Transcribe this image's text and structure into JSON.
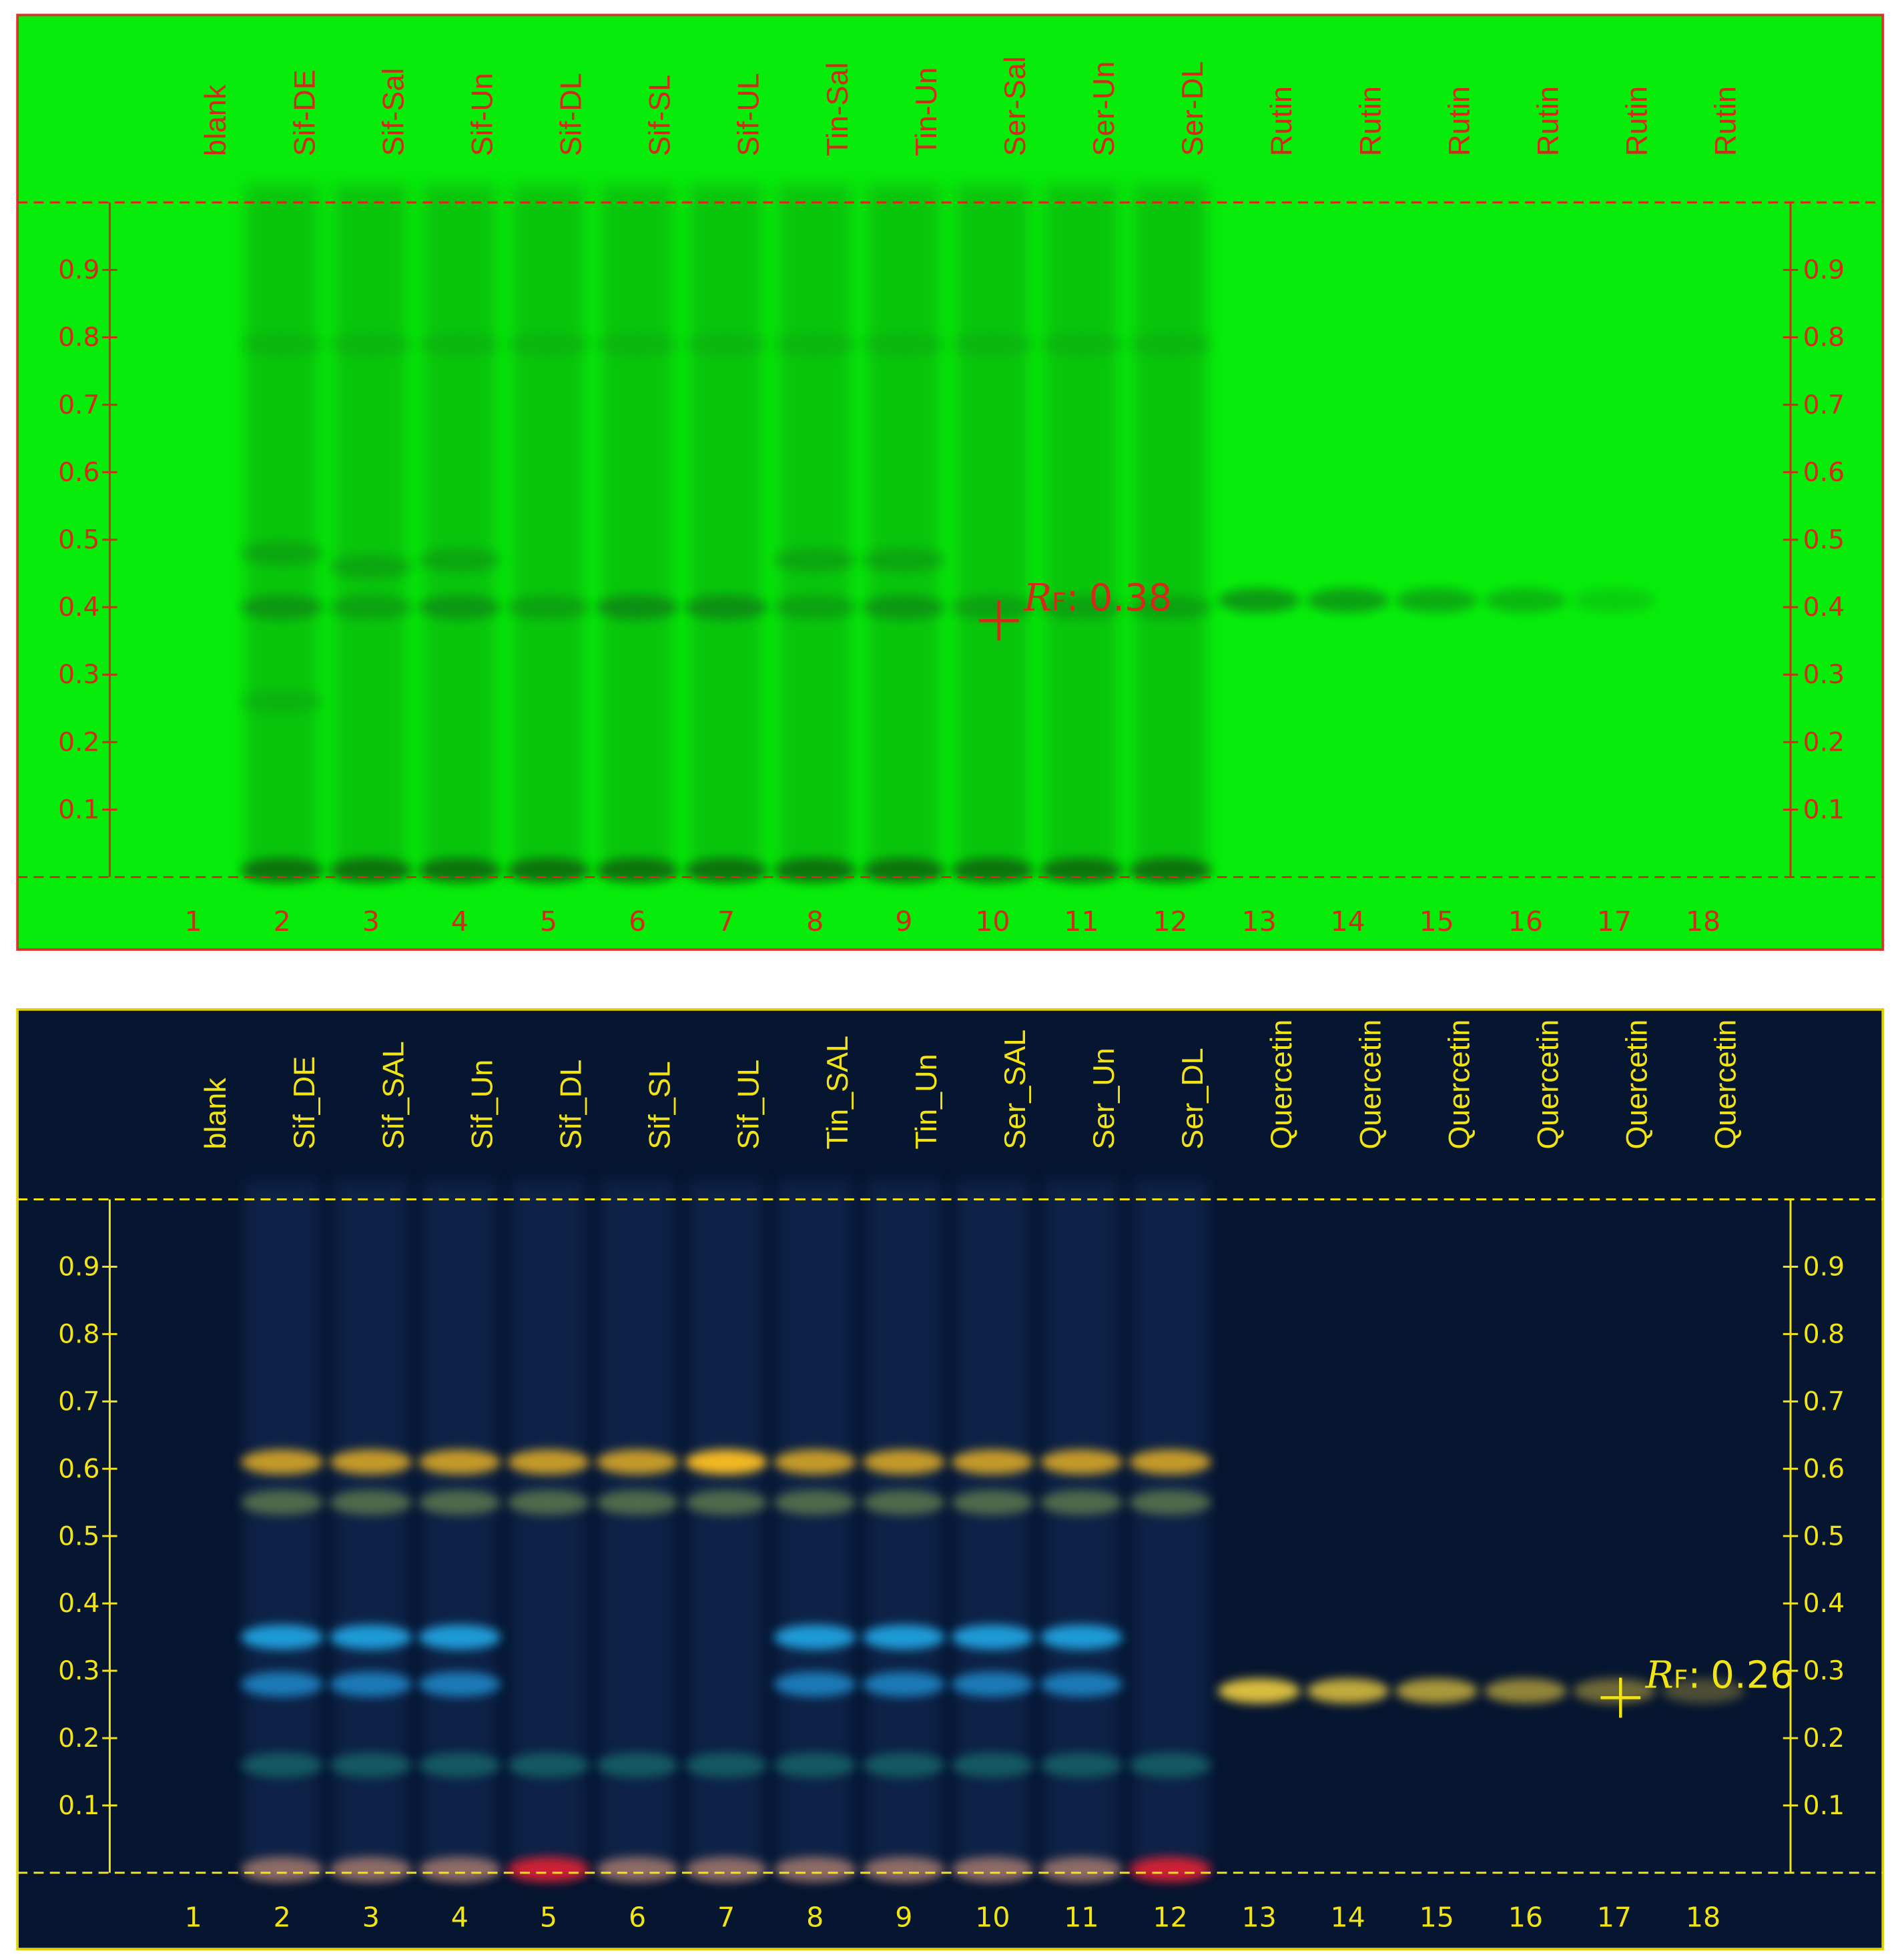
{
  "plates": [
    {
      "lane_labels": [
        "blank",
        "Sif-DE",
        "Sif-Sal",
        "Sif-Un",
        "Sif-DL",
        "Sif-SL",
        "Sif-UL",
        "Tin-Sal",
        "Tin-Un",
        "Ser-Sal",
        "Ser-Un",
        "Ser-DL",
        "Rutin",
        "Rutin",
        "Rutin",
        "Rutin",
        "Rutin",
        "Rutin"
      ],
      "lane_numbers": [
        1,
        2,
        3,
        4,
        5,
        6,
        7,
        8,
        9,
        10,
        11,
        12,
        13,
        14,
        15,
        16,
        17,
        18
      ],
      "rf_ticks": [
        0.1,
        0.2,
        0.3,
        0.4,
        0.5,
        0.6,
        0.7,
        0.8,
        0.9
      ],
      "annotation": {
        "symbol": "R",
        "subscript": "F",
        "separator": ":",
        "value": 0.38
      }
    },
    {
      "lane_labels": [
        "blank",
        "Sif_DE",
        "Sif_SAL",
        "Sif_Un",
        "Sif_DL",
        "Sif_SL",
        "Sif_UL",
        "Tin_SAL",
        "Tin_Un",
        "Ser_SAL",
        "Ser_Un",
        "Ser_DL",
        "Quercetin",
        "Quercetin",
        "Quercetin",
        "Quercetin",
        "Quercetin",
        "Quercetin"
      ],
      "lane_numbers": [
        1,
        2,
        3,
        4,
        5,
        6,
        7,
        8,
        9,
        10,
        11,
        12,
        13,
        14,
        15,
        16,
        17,
        18
      ],
      "rf_ticks": [
        0.1,
        0.2,
        0.3,
        0.4,
        0.5,
        0.6,
        0.7,
        0.8,
        0.9
      ],
      "annotation": {
        "symbol": "R",
        "subscript": "F",
        "separator": ":",
        "value": 0.26
      }
    }
  ]
}
